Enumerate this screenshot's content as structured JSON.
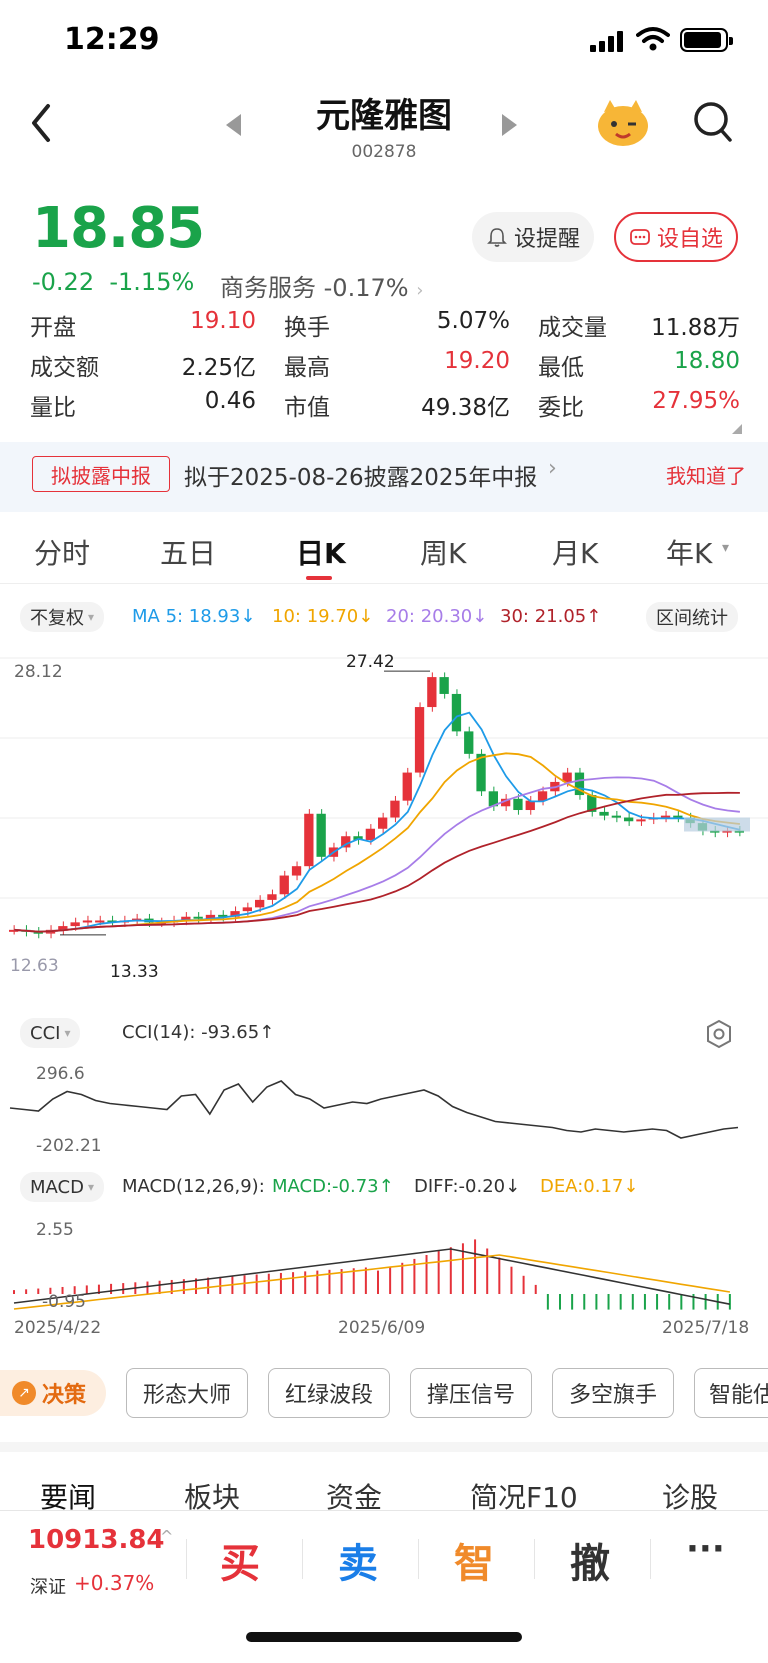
{
  "status": {
    "time": "12:29"
  },
  "header": {
    "title": "元隆雅图",
    "code": "002878"
  },
  "quote": {
    "price": "18.85",
    "change": "-0.22",
    "change_pct": "-1.15%",
    "sector_name": "商务服务",
    "sector_pct": "-0.17%",
    "alert_label": "设提醒",
    "watch_label": "设自选"
  },
  "stats": [
    [
      {
        "label": "开盘",
        "value": "19.10",
        "color": "red"
      },
      {
        "label": "换手",
        "value": "5.07%",
        "color": "dark"
      },
      {
        "label": "成交量",
        "value": "11.88万",
        "color": "dark"
      }
    ],
    [
      {
        "label": "成交额",
        "value": "2.25亿",
        "color": "dark"
      },
      {
        "label": "最高",
        "value": "19.20",
        "color": "red"
      },
      {
        "label": "最低",
        "value": "18.80",
        "color": "green"
      }
    ],
    [
      {
        "label": "量比",
        "value": "0.46",
        "color": "dark"
      },
      {
        "label": "市值",
        "value": "49.38亿",
        "color": "dark"
      },
      {
        "label": "委比",
        "value": "27.95%",
        "color": "red"
      }
    ]
  ],
  "disclosure": {
    "tag": "拟披露中报",
    "text": "拟于2025-08-26披露2025年中报",
    "dismiss": "我知道了"
  },
  "tabs": [
    "分时",
    "五日",
    "日K",
    "周K",
    "月K",
    "年K"
  ],
  "ma": {
    "adjust": "不复权",
    "ma5": "MA 5: 18.93↓",
    "ma10": "10: 19.70↓",
    "ma20": "20: 20.30↓",
    "ma30": "30: 21.05↑",
    "range_stats": "区间统计",
    "colors": {
      "ma5": "#1e9be8",
      "ma10": "#f0a500",
      "ma20": "#a77de8",
      "ma30": "#b0222a"
    }
  },
  "kline": {
    "top_label": "28.12",
    "high_marker": "27.42",
    "low_marker": "13.33",
    "low_label": "12.63"
  },
  "cci": {
    "chip": "CCI",
    "text": "CCI(14): -93.65↑",
    "top": "296.6",
    "bottom": "-202.21"
  },
  "macd": {
    "chip": "MACD",
    "params": "MACD(12,26,9):",
    "macd": "MACD:-0.73↑",
    "diff": "DIFF:-0.20↓",
    "dea": "DEA:0.17↓",
    "top": "2.55",
    "bottom": "-0.95"
  },
  "dates": [
    "2025/4/22",
    "2025/6/09",
    "2025/7/18"
  ],
  "decision": {
    "label": "决策",
    "buttons": [
      "形态大师",
      "红绿波段",
      "撑压信号",
      "多空旗手",
      "智能估"
    ]
  },
  "news_tabs": [
    "要闻",
    "板块",
    "资金",
    "简况F10",
    "诊股"
  ],
  "index": {
    "value": "10913.84",
    "name": "深证",
    "pct": "+0.37%"
  },
  "actions": {
    "buy": "买",
    "sell": "卖",
    "smart": "智",
    "cancel": "撤",
    "more": "···"
  },
  "chart_data": {
    "type": "candlestick",
    "ohlc_note": "daily K from 2025/4/22 to 2025/7/18",
    "x_labels": [
      "2025/4/22",
      "2025/6/09",
      "2025/7/18"
    ],
    "ylim": [
      12.63,
      28.12
    ],
    "high": 27.42,
    "low": 13.33
  }
}
